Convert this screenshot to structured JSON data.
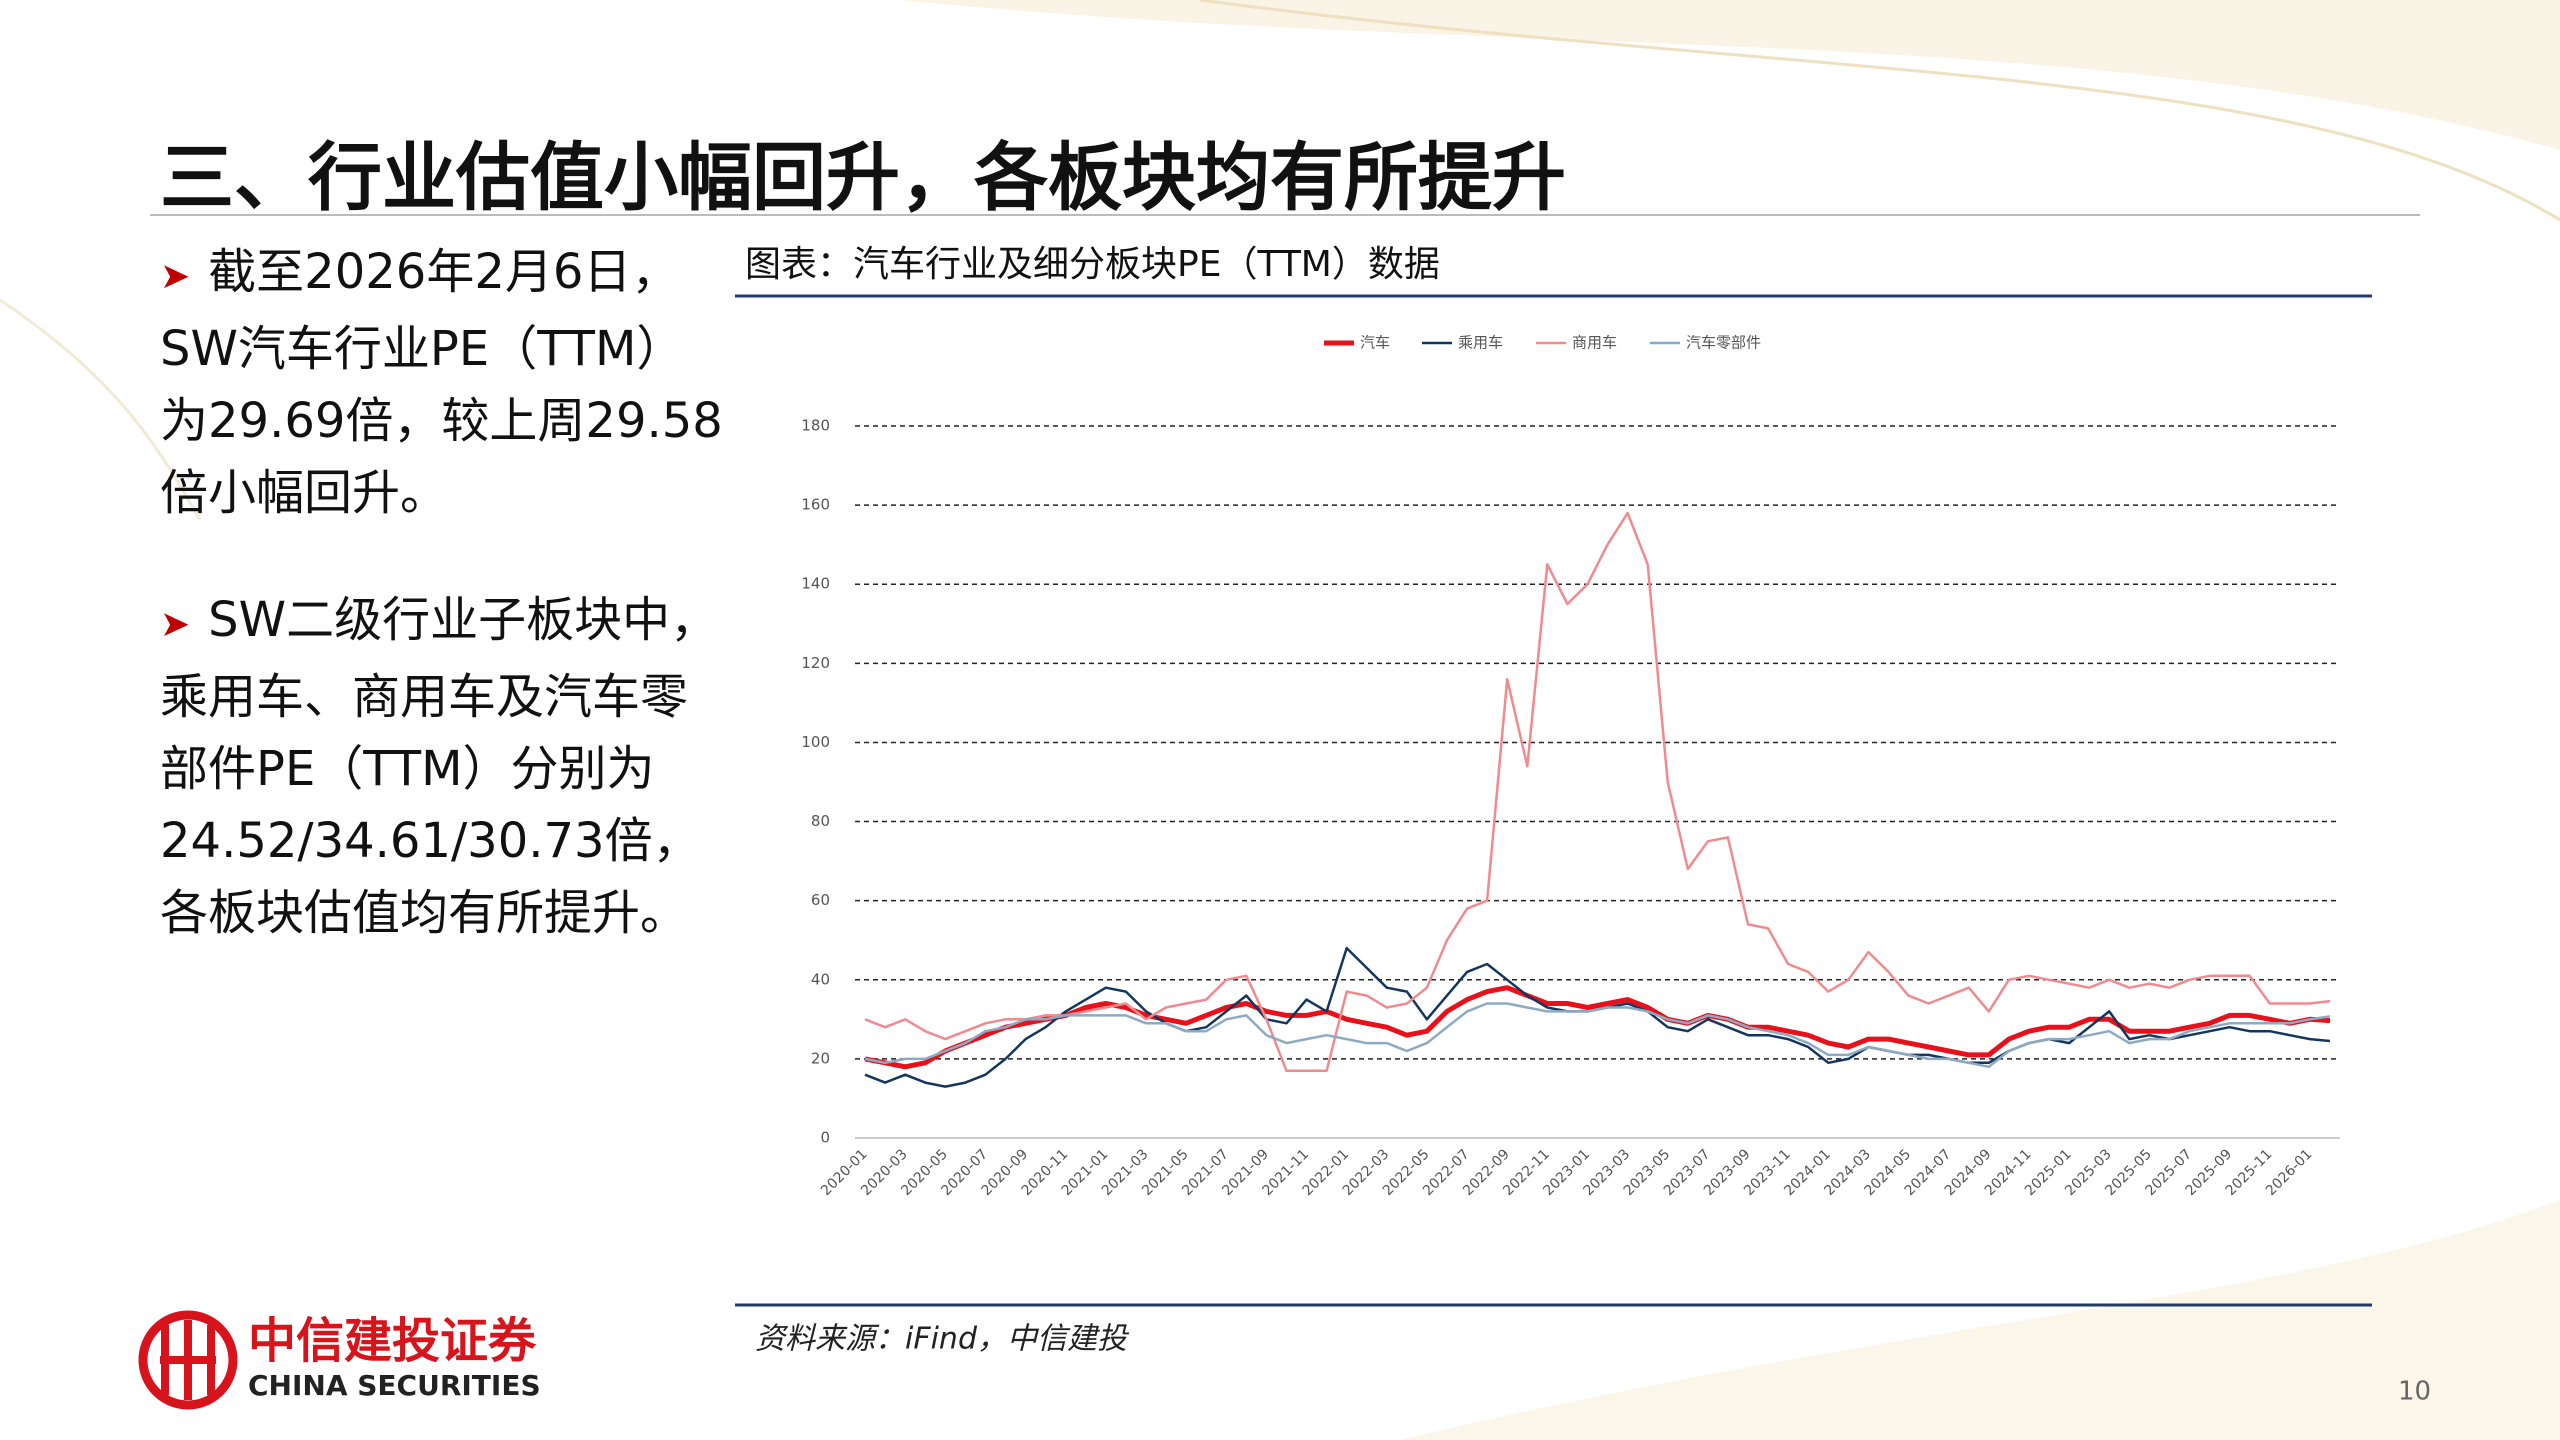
{
  "header": {
    "title": "三、行业估值小幅回升，各板块均有所提升"
  },
  "bullets": [
    "截至2026年2月6日，SW汽车行业PE（TTM）为29.69倍，较上周29.58倍小幅回升。",
    "SW二级行业子板块中，乘用车、商用车及汽车零部件PE（TTM）分别为24.52/34.61/30.73倍，各板块估值均有所提升。"
  ],
  "chart_data": {
    "type": "line",
    "title": "图表：汽车行业及细分板块PE（TTM）数据",
    "categories": [
      "2020-01",
      null,
      "2020-03",
      null,
      "2020-05",
      null,
      "2020-07",
      null,
      "2020-09",
      null,
      "2020-11",
      null,
      "2021-01",
      null,
      "2021-03",
      null,
      "2021-05",
      null,
      "2021-07",
      null,
      "2021-09",
      null,
      "2021-11",
      null,
      "2022-01",
      null,
      "2022-03",
      null,
      "2022-05",
      null,
      "2022-07",
      null,
      "2022-09",
      null,
      "2022-11",
      null,
      "2023-01",
      null,
      "2023-03",
      null,
      "2023-05",
      null,
      "2023-07",
      null,
      "2023-09",
      null,
      "2023-11",
      null,
      "2024-01",
      null,
      "2024-03",
      null,
      "2024-05",
      null,
      "2024-07",
      null,
      "2024-09",
      null,
      "2024-11",
      null,
      "2025-01",
      null,
      "2025-03",
      null,
      "2025-05",
      null,
      "2025-07",
      null,
      "2025-09",
      null,
      "2025-11",
      null,
      "2026-01",
      null
    ],
    "series": [
      {
        "name": "汽车",
        "color": "#e8111b",
        "width": 5,
        "values": [
          20,
          19,
          18,
          19,
          22,
          24,
          26,
          28,
          29,
          30,
          31,
          33,
          34,
          33,
          31,
          30,
          29,
          31,
          33,
          34,
          32,
          31,
          31,
          32,
          30,
          29,
          28,
          26,
          27,
          32,
          35,
          37,
          38,
          36,
          34,
          34,
          33,
          34,
          35,
          33,
          30,
          29,
          31,
          30,
          28,
          28,
          27,
          26,
          24,
          23,
          25,
          25,
          24,
          23,
          22,
          21,
          21,
          25,
          27,
          28,
          28,
          30,
          30,
          27,
          27,
          27,
          28,
          29,
          31,
          31,
          30,
          29,
          30,
          29.69
        ]
      },
      {
        "name": "乘用车",
        "color": "#14365e",
        "width": 2.5,
        "values": [
          16,
          14,
          16,
          14,
          13,
          14,
          16,
          20,
          25,
          28,
          32,
          35,
          38,
          37,
          32,
          29,
          27,
          28,
          32,
          36,
          30,
          29,
          35,
          32,
          48,
          43,
          38,
          37,
          30,
          36,
          42,
          44,
          40,
          36,
          33,
          32,
          32,
          33,
          34,
          32,
          28,
          27,
          30,
          28,
          26,
          26,
          25,
          23,
          19,
          20,
          23,
          22,
          21,
          21,
          20,
          19,
          19,
          22,
          24,
          25,
          24,
          28,
          32,
          25,
          26,
          25,
          26,
          27,
          28,
          27,
          27,
          26,
          25,
          24.52
        ]
      },
      {
        "name": "商用车",
        "color": "#f08a8f",
        "width": 2.5,
        "values": [
          30,
          28,
          30,
          27,
          25,
          27,
          29,
          30,
          30,
          31,
          31,
          32,
          33,
          34,
          30,
          33,
          34,
          35,
          40,
          41,
          30,
          17,
          17,
          17,
          37,
          36,
          33,
          34,
          38,
          50,
          58,
          60,
          116,
          94,
          145,
          135,
          140,
          150,
          158,
          145,
          90,
          68,
          75,
          76,
          54,
          53,
          44,
          42,
          37,
          40,
          47,
          42,
          36,
          34,
          36,
          38,
          32,
          40,
          41,
          40,
          39,
          38,
          40,
          38,
          39,
          38,
          40,
          41,
          41,
          41,
          34,
          34,
          34,
          34.61
        ]
      },
      {
        "name": "汽车零部件",
        "color": "#8eaac2",
        "width": 2.5,
        "values": [
          20,
          19,
          20,
          20,
          22,
          24,
          27,
          28,
          30,
          30,
          31,
          31,
          31,
          31,
          29,
          29,
          27,
          27,
          30,
          31,
          26,
          24,
          25,
          26,
          25,
          24,
          24,
          22,
          24,
          28,
          32,
          34,
          34,
          33,
          32,
          32,
          32,
          33,
          33,
          32,
          30,
          29,
          31,
          30,
          28,
          27,
          26,
          24,
          21,
          21,
          23,
          22,
          21,
          20,
          20,
          19,
          18,
          22,
          24,
          25,
          25,
          26,
          27,
          24,
          25,
          25,
          27,
          28,
          29,
          29,
          29,
          29,
          30,
          30.73
        ]
      }
    ],
    "ylim": [
      0,
      180
    ],
    "yticks": [
      0,
      20,
      40,
      60,
      80,
      100,
      120,
      140,
      160,
      180
    ],
    "grid": true,
    "legend": "top"
  },
  "source": "资料来源：iFind，中信建投",
  "page_number": "10",
  "logo": {
    "name_cn": "中信建投证券",
    "name_en": "CHINA SECURITIES"
  }
}
